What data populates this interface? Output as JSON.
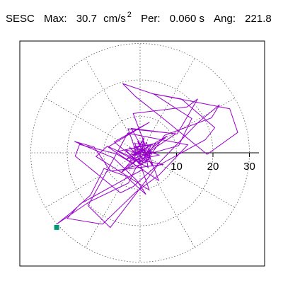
{
  "header": {
    "station": "SESC",
    "max_label": "Max:",
    "max_value": "30.7",
    "max_unit": "cm/s",
    "max_unit_exp": "2",
    "per_label": "Per:",
    "per_value": "0.060 s",
    "ang_label": "Ang:",
    "ang_value": "221.8"
  },
  "chart_data": {
    "type": "polar-orbit",
    "radial_ticks": [
      10,
      20,
      30
    ],
    "tick_labels": [
      "10",
      "20",
      "30"
    ],
    "rmax": 30,
    "units": "cm/s2",
    "grid": true,
    "max_marker": {
      "r": 30.7,
      "angle_deg": 221.8,
      "color": "#009977"
    },
    "trace_color": "#9900cc",
    "trace": {
      "x": [
        0,
        1.2,
        -2.3,
        2.7,
        -1.5,
        0.4,
        3.6,
        -3.0,
        1.9,
        -0.7,
        2.4,
        -4.1,
        0.2,
        3.1,
        -1.8,
        5.2,
        -2.9,
        1.1,
        -0.4,
        4.3,
        -6.1,
        2.2,
        0.9,
        -3.8,
        7.4,
        -5.2,
        1.8,
        3.3,
        -2.4,
        9.8,
        -4.4,
        0.5,
        -7.1,
        2.6,
        -8.8,
        5.1,
        -1.9,
        12.9,
        15.8,
        10.2,
        -3.3,
        2.5,
        -12.1,
        -9.0,
        1.4,
        6.7,
        19.6,
        21.8,
        16.0,
        4.2,
        -1.8,
        -5.4,
        -17.8,
        -16.6,
        -6.5,
        0.8,
        -2.7,
        -16.4,
        -20.0,
        -10.3,
        -1.2,
        5.3,
        13.1,
        -3.4,
        -14.3,
        -8.2,
        4.6,
        17.9,
        20.5,
        11.3,
        3.1,
        24.6,
        26.8,
        18.4,
        7.0,
        -1.3,
        -4.8,
        3.8,
        14.2,
        10.6,
        -2.2,
        6.4,
        -8.1,
        -12.6,
        -18.0,
        -7.3,
        -0.9,
        1.6,
        -4.1,
        -9.9,
        -13.6,
        -18.8,
        -22.9,
        -14.0,
        -3.2,
        -1.1,
        2.8,
        0.5,
        -2.0,
        1.3
      ],
      "y": [
        0,
        0.8,
        -0.6,
        1.9,
        2.6,
        -1.7,
        0.2,
        1.4,
        -2.3,
        3.2,
        -1.0,
        0.9,
        -3.4,
        2.2,
        1.7,
        -0.6,
        -2.4,
        4.2,
        -3.1,
        2.6,
        0.4,
        -4.0,
        3.3,
        -1.9,
        4.6,
        -5.5,
        2.8,
        -3.5,
        6.7,
        5.2,
        -4.3,
        -3.2,
        3.0,
        8.4,
        1.6,
        -7.6,
        10.8,
        12.6,
        14.8,
        5.2,
        6.6,
        -10.2,
        -1.0,
        1.8,
        -2.8,
        4.8,
        9.6,
        13.2,
        8.4,
        -3.8,
        -9.2,
        -11.0,
        -0.9,
        2.3,
        -0.3,
        -4.6,
        -6.4,
        -14.0,
        -18.0,
        -19.6,
        -10.8,
        -6.0,
        2.2,
        5.4,
        -14.5,
        -20.5,
        -3.7,
        3.6,
        6.9,
        14.8,
        16.3,
        12.1,
        5.6,
        -0.4,
        8.9,
        15.5,
        19.0,
        16.1,
        9.4,
        2.0,
        -1.6,
        -3.2,
        -5.0,
        1.6,
        3.1,
        -1.4,
        -7.6,
        -11.4,
        -6.3,
        -4.3,
        -11.6,
        -16.3,
        -19.6,
        -13.5,
        -8.3,
        -4.0,
        -1.6,
        1.2,
        -0.8,
        0.3
      ]
    }
  }
}
